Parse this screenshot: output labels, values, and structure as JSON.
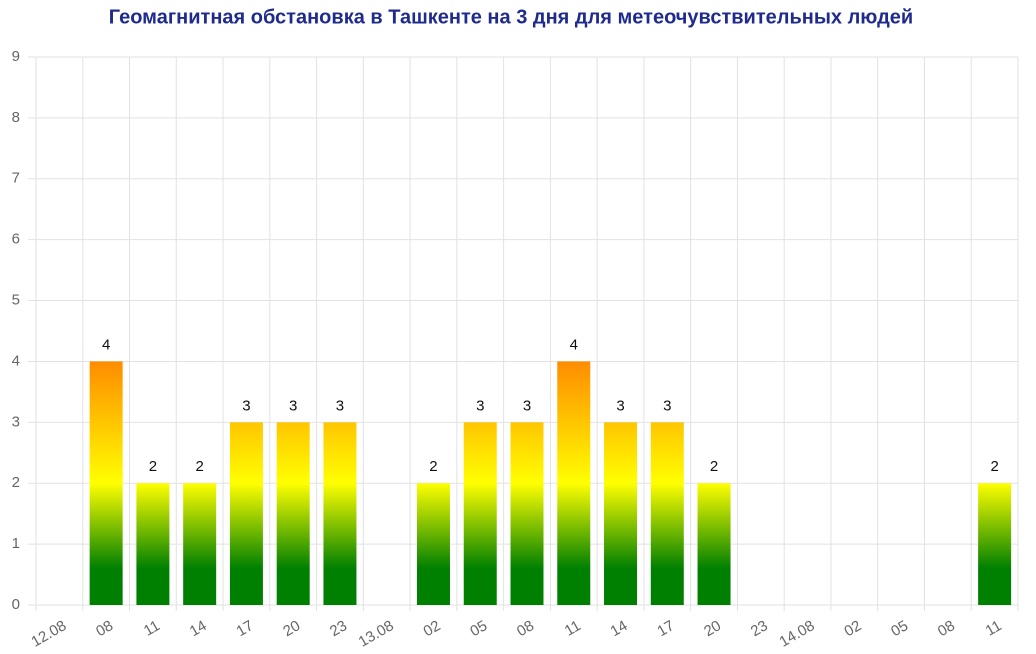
{
  "chart_data": {
    "type": "bar",
    "title": "Геомагнитная обстановка в Ташкенте на 3 дня для метеочувствительных людей",
    "categories": [
      "12.08",
      "08",
      "11",
      "14",
      "17",
      "20",
      "23",
      "13.08",
      "02",
      "05",
      "08",
      "11",
      "14",
      "17",
      "20",
      "23",
      "14.08",
      "02",
      "05",
      "08",
      "11"
    ],
    "values": [
      null,
      4,
      2,
      2,
      3,
      3,
      3,
      null,
      2,
      3,
      3,
      4,
      3,
      3,
      2,
      null,
      null,
      null,
      null,
      null,
      2
    ],
    "ylim": [
      0,
      9
    ],
    "yticks": [
      0,
      1,
      2,
      3,
      4,
      5,
      6,
      7,
      8,
      9
    ],
    "grid": true
  }
}
